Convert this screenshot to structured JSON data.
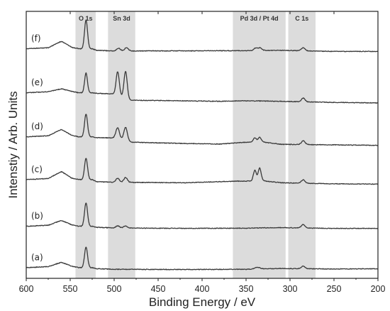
{
  "chart_data": {
    "type": "line",
    "xlabel": "Binding Energy / eV",
    "ylabel": "Intenstiy / Arb. Units",
    "xlim": [
      600,
      200
    ],
    "xdir": "reversed",
    "xticks": [
      600,
      550,
      500,
      450,
      400,
      350,
      300,
      250,
      200
    ],
    "yticks": "none",
    "grid": false,
    "regions": [
      {
        "label": "O 1s",
        "from": 544,
        "to": 521
      },
      {
        "label": "Sn 3d",
        "from": 507,
        "to": 476
      },
      {
        "label": "Pd 3d / Pt 4d",
        "from": 365,
        "to": 305
      },
      {
        "label": "C 1s",
        "from": 302,
        "to": 271
      }
    ],
    "colors": {
      "curve": "#3a3a3a",
      "highlight": "#dcdcdc",
      "axis": "#222222"
    },
    "series": [
      {
        "label": "(a)",
        "baseline": 0.04,
        "background": [
          [
            600,
            0.0
          ],
          [
            575,
            0.004
          ],
          [
            560,
            0.02
          ],
          [
            548,
            0.005
          ],
          [
            540,
            0.0
          ],
          [
            525,
            0.0
          ],
          [
            520,
            -0.004
          ],
          [
            500,
            -0.006
          ],
          [
            420,
            -0.007
          ],
          [
            350,
            -0.006
          ],
          [
            310,
            -0.003
          ],
          [
            250,
            -0.005
          ],
          [
            200,
            -0.004
          ]
        ],
        "peaks": [
          {
            "x": 532,
            "h": 0.078,
            "w": 1.7
          },
          {
            "x": 337,
            "h": 0.006,
            "w": 3
          },
          {
            "x": 285,
            "h": 0.01,
            "w": 2
          }
        ]
      },
      {
        "label": "(b)",
        "baseline": 0.195,
        "background": [
          [
            600,
            0.0
          ],
          [
            575,
            0.004
          ],
          [
            560,
            0.022
          ],
          [
            548,
            0.005
          ],
          [
            540,
            0.0
          ],
          [
            525,
            0.0
          ],
          [
            520,
            -0.004
          ],
          [
            500,
            -0.006
          ],
          [
            420,
            -0.008
          ],
          [
            350,
            -0.007
          ],
          [
            310,
            -0.005
          ],
          [
            250,
            -0.008
          ],
          [
            200,
            -0.008
          ]
        ],
        "peaks": [
          {
            "x": 532,
            "h": 0.088,
            "w": 1.7
          },
          {
            "x": 496,
            "h": 0.008,
            "w": 2
          },
          {
            "x": 487,
            "h": 0.008,
            "w": 2
          },
          {
            "x": 285,
            "h": 0.013,
            "w": 2
          }
        ]
      },
      {
        "label": "(c)",
        "baseline": 0.37,
        "background": [
          [
            600,
            0.0
          ],
          [
            575,
            0.004
          ],
          [
            560,
            0.03
          ],
          [
            548,
            0.005
          ],
          [
            540,
            0.0
          ],
          [
            525,
            0.0
          ],
          [
            520,
            -0.008
          ],
          [
            500,
            -0.01
          ],
          [
            420,
            -0.012
          ],
          [
            360,
            -0.006
          ],
          [
            330,
            -0.005
          ],
          [
            310,
            -0.012
          ],
          [
            250,
            -0.016
          ],
          [
            200,
            -0.017
          ]
        ],
        "peaks": [
          {
            "x": 532,
            "h": 0.08,
            "w": 1.7
          },
          {
            "x": 496,
            "h": 0.015,
            "w": 2
          },
          {
            "x": 487,
            "h": 0.018,
            "w": 2
          },
          {
            "x": 340,
            "h": 0.04,
            "w": 1.7
          },
          {
            "x": 334.5,
            "h": 0.048,
            "w": 1.7
          },
          {
            "x": 285,
            "h": 0.013,
            "w": 2
          }
        ]
      },
      {
        "label": "(d)",
        "baseline": 0.53,
        "background": [
          [
            600,
            0.0
          ],
          [
            575,
            0.004
          ],
          [
            560,
            0.028
          ],
          [
            548,
            0.005
          ],
          [
            540,
            0.0
          ],
          [
            525,
            0.0
          ],
          [
            520,
            -0.003
          ],
          [
            500,
            -0.004
          ],
          [
            480,
            -0.02
          ],
          [
            420,
            -0.025
          ],
          [
            380,
            -0.027
          ],
          [
            350,
            -0.02
          ],
          [
            330,
            -0.02
          ],
          [
            310,
            -0.028
          ],
          [
            250,
            -0.03
          ],
          [
            200,
            -0.032
          ]
        ],
        "peaks": [
          {
            "x": 532,
            "h": 0.085,
            "w": 1.7
          },
          {
            "x": 496,
            "h": 0.042,
            "w": 2
          },
          {
            "x": 487,
            "h": 0.05,
            "w": 2
          },
          {
            "x": 340,
            "h": 0.016,
            "w": 1.8
          },
          {
            "x": 334.5,
            "h": 0.018,
            "w": 1.8
          },
          {
            "x": 285,
            "h": 0.014,
            "w": 2
          }
        ]
      },
      {
        "label": "(e)",
        "baseline": 0.695,
        "background": [
          [
            600,
            0.0
          ],
          [
            575,
            0.004
          ],
          [
            560,
            0.015
          ],
          [
            548,
            0.005
          ],
          [
            540,
            0.0
          ],
          [
            525,
            0.0
          ],
          [
            520,
            -0.002
          ],
          [
            500,
            -0.004
          ],
          [
            480,
            -0.028
          ],
          [
            420,
            -0.03
          ],
          [
            380,
            -0.032
          ],
          [
            350,
            -0.03
          ],
          [
            310,
            -0.032
          ],
          [
            250,
            -0.036
          ],
          [
            200,
            -0.038
          ]
        ],
        "peaks": [
          {
            "x": 532,
            "h": 0.075,
            "w": 1.6
          },
          {
            "x": 496,
            "h": 0.088,
            "w": 1.8
          },
          {
            "x": 487,
            "h": 0.1,
            "w": 1.8
          },
          {
            "x": 285,
            "h": 0.014,
            "w": 2
          }
        ]
      },
      {
        "label": "(f)",
        "baseline": 0.86,
        "background": [
          [
            600,
            0.0
          ],
          [
            575,
            0.004
          ],
          [
            560,
            0.028
          ],
          [
            548,
            0.005
          ],
          [
            540,
            0.0
          ],
          [
            525,
            0.0
          ],
          [
            520,
            -0.006
          ],
          [
            500,
            -0.008
          ],
          [
            420,
            -0.008
          ],
          [
            350,
            -0.007
          ],
          [
            310,
            -0.006
          ],
          [
            250,
            -0.01
          ],
          [
            200,
            -0.01
          ]
        ],
        "peaks": [
          {
            "x": 532,
            "h": 0.108,
            "w": 1.7
          },
          {
            "x": 495,
            "h": 0.01,
            "w": 2
          },
          {
            "x": 486,
            "h": 0.012,
            "w": 2
          },
          {
            "x": 339,
            "h": 0.01,
            "w": 2
          },
          {
            "x": 334,
            "h": 0.01,
            "w": 2
          },
          {
            "x": 285,
            "h": 0.012,
            "w": 2
          }
        ]
      }
    ]
  }
}
